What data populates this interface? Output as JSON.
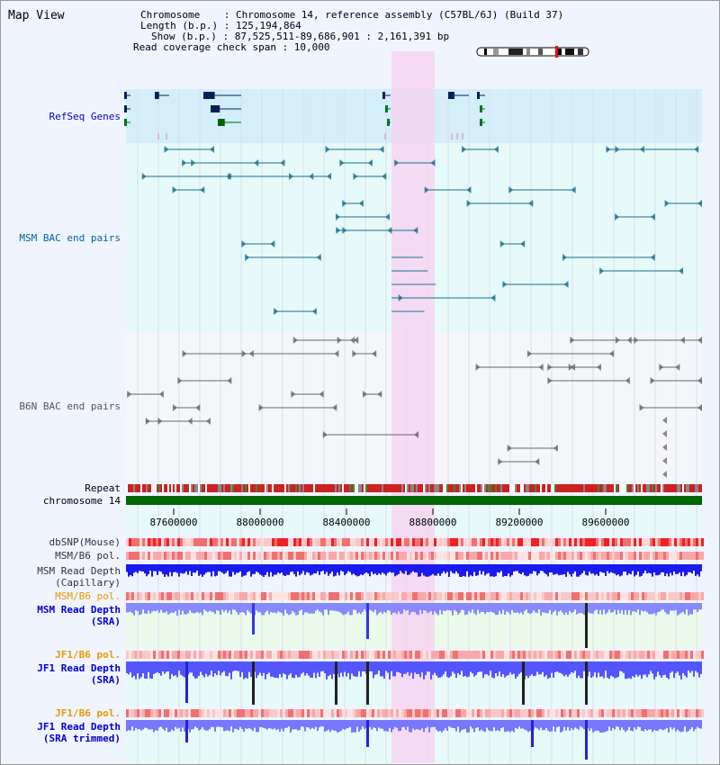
{
  "view_title": "Map View",
  "info": {
    "chromosome": "Chromosome    : Chromosome 14, reference assembly (C57BL/6J) (Build 37)",
    "length": "Length (b.p.) : 125,194,864",
    "show": "Show (b.p.) : 87,525,511-89,686,901 : 2,161,391 bp",
    "coverage": "Read coverage check span : 10,000"
  },
  "tracks": {
    "refseq": "RefSeq Genes",
    "msm_bac": "MSM BAC end pairs",
    "b6n_bac": "B6N BAC end pairs",
    "repeat": "Repeat",
    "chrom": "chromosome 14",
    "dbsnp": "dbSNP(Mouse)",
    "msm_pol1": "MSM/B6 pol.",
    "msm_depth_cap_1": "MSM Read Depth",
    "msm_depth_cap_2": "(Capillary)",
    "msm_pol2": "MSM/B6 pol.",
    "msm_depth_sra_1": "MSM Read Depth",
    "msm_depth_sra_2": "(SRA)",
    "jf1_pol1": "JF1/B6 pol.",
    "jf1_depth_sra_1": "JF1 Read Depth",
    "jf1_depth_sra_2": "(SRA)",
    "jf1_pol2": "JF1/B6 pol.",
    "jf1_depth_trim_1": "JF1 Read Depth",
    "jf1_depth_trim_2": "(SRA trimmed)"
  },
  "axis_ticks": [
    "87600000",
    "88000000",
    "88400000",
    "88800000",
    "89200000",
    "89600000"
  ],
  "colors": {
    "refseq_text": "#0000cc",
    "msm_text": "#006699",
    "b6n_text": "#666666",
    "orange_text": "#e69a00",
    "blue_text": "#0000cc",
    "highlight": "#f8d0f0"
  }
}
